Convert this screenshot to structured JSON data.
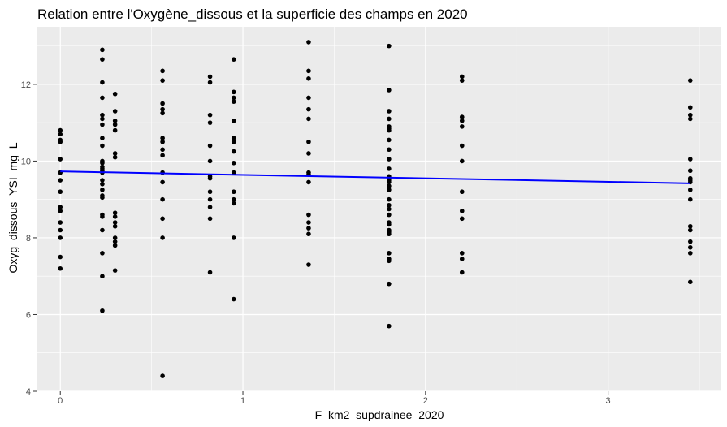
{
  "chart_data": {
    "type": "scatter",
    "title": "Relation entre l'Oxygène_dissous et la superficie des champs en 2020",
    "xlabel": "F_km2_supdrainee_2020",
    "ylabel": "Oxyg_dissous_YSI_mg_L",
    "xlim": [
      -0.13,
      3.62
    ],
    "ylim": [
      4.0,
      13.5
    ],
    "x_ticks": [
      0,
      1,
      2,
      3
    ],
    "x_tick_labels": [
      "0",
      "1",
      "2",
      "3"
    ],
    "y_ticks": [
      4,
      6,
      8,
      10,
      12
    ],
    "y_tick_labels": [
      "4",
      "6",
      "8",
      "10",
      "12"
    ],
    "grid": true,
    "legend": "none",
    "colors": {
      "panel": "#ebebeb",
      "grid": "#ffffff",
      "points": "#000000",
      "fit_line": "#0000ff"
    },
    "points": [
      [
        0,
        10.8
      ],
      [
        0,
        10.7
      ],
      [
        0,
        10.55
      ],
      [
        0,
        10.5
      ],
      [
        0,
        10.05
      ],
      [
        0,
        9.7
      ],
      [
        0,
        9.5
      ],
      [
        0,
        9.2
      ],
      [
        0,
        8.8
      ],
      [
        0,
        8.7
      ],
      [
        0,
        8.4
      ],
      [
        0,
        8.2
      ],
      [
        0,
        8.0
      ],
      [
        0,
        7.5
      ],
      [
        0,
        7.2
      ],
      [
        0.23,
        12.9
      ],
      [
        0.23,
        12.65
      ],
      [
        0.23,
        12.05
      ],
      [
        0.23,
        11.65
      ],
      [
        0.23,
        11.2
      ],
      [
        0.23,
        11.1
      ],
      [
        0.23,
        10.95
      ],
      [
        0.23,
        10.6
      ],
      [
        0.23,
        10.4
      ],
      [
        0.23,
        10.0
      ],
      [
        0.23,
        9.95
      ],
      [
        0.23,
        9.85
      ],
      [
        0.23,
        9.8
      ],
      [
        0.23,
        9.75
      ],
      [
        0.23,
        9.7
      ],
      [
        0.23,
        9.5
      ],
      [
        0.23,
        9.4
      ],
      [
        0.23,
        9.25
      ],
      [
        0.23,
        9.1
      ],
      [
        0.23,
        9.05
      ],
      [
        0.23,
        8.6
      ],
      [
        0.23,
        8.55
      ],
      [
        0.23,
        8.2
      ],
      [
        0.23,
        7.6
      ],
      [
        0.23,
        7.0
      ],
      [
        0.23,
        6.1
      ],
      [
        0.3,
        11.75
      ],
      [
        0.3,
        11.3
      ],
      [
        0.3,
        11.05
      ],
      [
        0.3,
        10.95
      ],
      [
        0.3,
        10.8
      ],
      [
        0.3,
        10.2
      ],
      [
        0.3,
        10.1
      ],
      [
        0.3,
        8.65
      ],
      [
        0.3,
        8.55
      ],
      [
        0.3,
        8.4
      ],
      [
        0.3,
        8.3
      ],
      [
        0.3,
        8.0
      ],
      [
        0.3,
        7.9
      ],
      [
        0.3,
        7.8
      ],
      [
        0.3,
        7.15
      ],
      [
        0.56,
        12.35
      ],
      [
        0.56,
        12.1
      ],
      [
        0.56,
        11.5
      ],
      [
        0.56,
        11.35
      ],
      [
        0.56,
        11.25
      ],
      [
        0.56,
        10.6
      ],
      [
        0.56,
        10.5
      ],
      [
        0.56,
        10.3
      ],
      [
        0.56,
        10.15
      ],
      [
        0.56,
        9.7
      ],
      [
        0.56,
        9.45
      ],
      [
        0.56,
        9.0
      ],
      [
        0.56,
        8.5
      ],
      [
        0.56,
        8.0
      ],
      [
        0.56,
        4.4
      ],
      [
        0.82,
        12.2
      ],
      [
        0.82,
        12.05
      ],
      [
        0.82,
        11.2
      ],
      [
        0.82,
        11.0
      ],
      [
        0.82,
        10.4
      ],
      [
        0.82,
        10.0
      ],
      [
        0.82,
        9.6
      ],
      [
        0.82,
        9.55
      ],
      [
        0.82,
        9.2
      ],
      [
        0.82,
        9.0
      ],
      [
        0.82,
        8.8
      ],
      [
        0.82,
        8.5
      ],
      [
        0.82,
        7.1
      ],
      [
        0.95,
        12.65
      ],
      [
        0.95,
        11.8
      ],
      [
        0.95,
        11.65
      ],
      [
        0.95,
        11.55
      ],
      [
        0.95,
        11.05
      ],
      [
        0.95,
        10.6
      ],
      [
        0.95,
        10.5
      ],
      [
        0.95,
        10.25
      ],
      [
        0.95,
        9.95
      ],
      [
        0.95,
        9.7
      ],
      [
        0.95,
        9.2
      ],
      [
        0.95,
        9.0
      ],
      [
        0.95,
        8.9
      ],
      [
        0.95,
        8.0
      ],
      [
        0.95,
        6.4
      ],
      [
        1.36,
        13.1
      ],
      [
        1.36,
        12.35
      ],
      [
        1.36,
        12.15
      ],
      [
        1.36,
        11.65
      ],
      [
        1.36,
        11.35
      ],
      [
        1.36,
        11.1
      ],
      [
        1.36,
        10.5
      ],
      [
        1.36,
        10.2
      ],
      [
        1.36,
        9.7
      ],
      [
        1.36,
        9.65
      ],
      [
        1.36,
        9.45
      ],
      [
        1.36,
        8.6
      ],
      [
        1.36,
        8.4
      ],
      [
        1.36,
        8.25
      ],
      [
        1.36,
        8.1
      ],
      [
        1.36,
        7.3
      ],
      [
        1.8,
        13.0
      ],
      [
        1.8,
        11.85
      ],
      [
        1.8,
        11.3
      ],
      [
        1.8,
        11.1
      ],
      [
        1.8,
        10.9
      ],
      [
        1.8,
        10.85
      ],
      [
        1.8,
        10.8
      ],
      [
        1.8,
        10.55
      ],
      [
        1.8,
        10.3
      ],
      [
        1.8,
        10.05
      ],
      [
        1.8,
        9.8
      ],
      [
        1.8,
        9.6
      ],
      [
        1.8,
        9.55
      ],
      [
        1.8,
        9.5
      ],
      [
        1.8,
        9.45
      ],
      [
        1.8,
        9.35
      ],
      [
        1.8,
        9.25
      ],
      [
        1.8,
        9.0
      ],
      [
        1.8,
        8.85
      ],
      [
        1.8,
        8.75
      ],
      [
        1.8,
        8.6
      ],
      [
        1.8,
        8.4
      ],
      [
        1.8,
        8.35
      ],
      [
        1.8,
        8.2
      ],
      [
        1.8,
        8.15
      ],
      [
        1.8,
        8.1
      ],
      [
        1.8,
        7.6
      ],
      [
        1.8,
        7.45
      ],
      [
        1.8,
        7.4
      ],
      [
        1.8,
        6.8
      ],
      [
        1.8,
        5.7
      ],
      [
        2.2,
        12.2
      ],
      [
        2.2,
        12.1
      ],
      [
        2.2,
        11.15
      ],
      [
        2.2,
        11.05
      ],
      [
        2.2,
        10.9
      ],
      [
        2.2,
        10.4
      ],
      [
        2.2,
        10.0
      ],
      [
        2.2,
        9.2
      ],
      [
        2.2,
        8.7
      ],
      [
        2.2,
        8.5
      ],
      [
        2.2,
        7.6
      ],
      [
        2.2,
        7.45
      ],
      [
        2.2,
        7.1
      ],
      [
        3.45,
        12.1
      ],
      [
        3.45,
        11.4
      ],
      [
        3.45,
        11.2
      ],
      [
        3.45,
        11.1
      ],
      [
        3.45,
        10.05
      ],
      [
        3.45,
        9.75
      ],
      [
        3.45,
        9.55
      ],
      [
        3.45,
        9.5
      ],
      [
        3.45,
        9.45
      ],
      [
        3.45,
        9.25
      ],
      [
        3.45,
        9.0
      ],
      [
        3.45,
        8.3
      ],
      [
        3.45,
        8.2
      ],
      [
        3.45,
        7.9
      ],
      [
        3.45,
        7.75
      ],
      [
        3.45,
        7.6
      ],
      [
        3.45,
        6.85
      ]
    ],
    "fit_line": {
      "x": [
        0,
        3.45
      ],
      "y": [
        9.73,
        9.42
      ]
    }
  }
}
